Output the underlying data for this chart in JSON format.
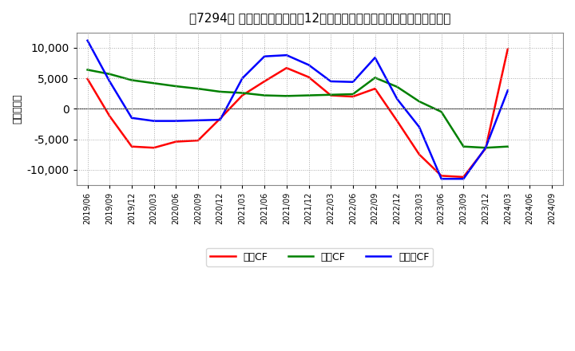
{
  "title": "［7294］ キャッシュフローの12か月移動合計の対前年同期増減額の推移",
  "ylabel": "（百万円）",
  "background_color": "#ffffff",
  "plot_background": "#ffffff",
  "grid_color": "#aaaaaa",
  "x_labels": [
    "2019/06",
    "2019/09",
    "2019/12",
    "2020/03",
    "2020/06",
    "2020/09",
    "2020/12",
    "2021/03",
    "2021/06",
    "2021/09",
    "2021/12",
    "2022/03",
    "2022/06",
    "2022/09",
    "2022/12",
    "2023/03",
    "2023/06",
    "2023/09",
    "2023/12",
    "2024/03",
    "2024/06",
    "2024/09"
  ],
  "eigyo_cf": [
    4900,
    -1200,
    -6200,
    -6400,
    -5400,
    -5200,
    -1600,
    2200,
    4500,
    6700,
    5200,
    2200,
    2000,
    3300,
    -2000,
    -7500,
    -11000,
    -11200,
    -6500,
    9800,
    null,
    null
  ],
  "toshi_cf": [
    6400,
    5700,
    4700,
    4200,
    3700,
    3300,
    2800,
    2600,
    2200,
    2100,
    2200,
    2300,
    2400,
    5100,
    3600,
    1200,
    -500,
    -6200,
    -6400,
    -6200,
    null,
    null
  ],
  "free_cf": [
    11200,
    4500,
    -1500,
    -2000,
    -2000,
    -1900,
    -1800,
    5000,
    8600,
    8800,
    7200,
    4500,
    4400,
    8400,
    1600,
    -3000,
    -11500,
    -11500,
    -6400,
    3000,
    null,
    null
  ],
  "eigyo_color": "#ff0000",
  "toshi_color": "#008000",
  "free_color": "#0000ff",
  "line_width": 1.8,
  "ylim": [
    -12500,
    12500
  ],
  "yticks": [
    -10000,
    -5000,
    0,
    5000,
    10000
  ],
  "legend_labels": [
    "営業CF",
    "投資CF",
    "フリーCF"
  ]
}
